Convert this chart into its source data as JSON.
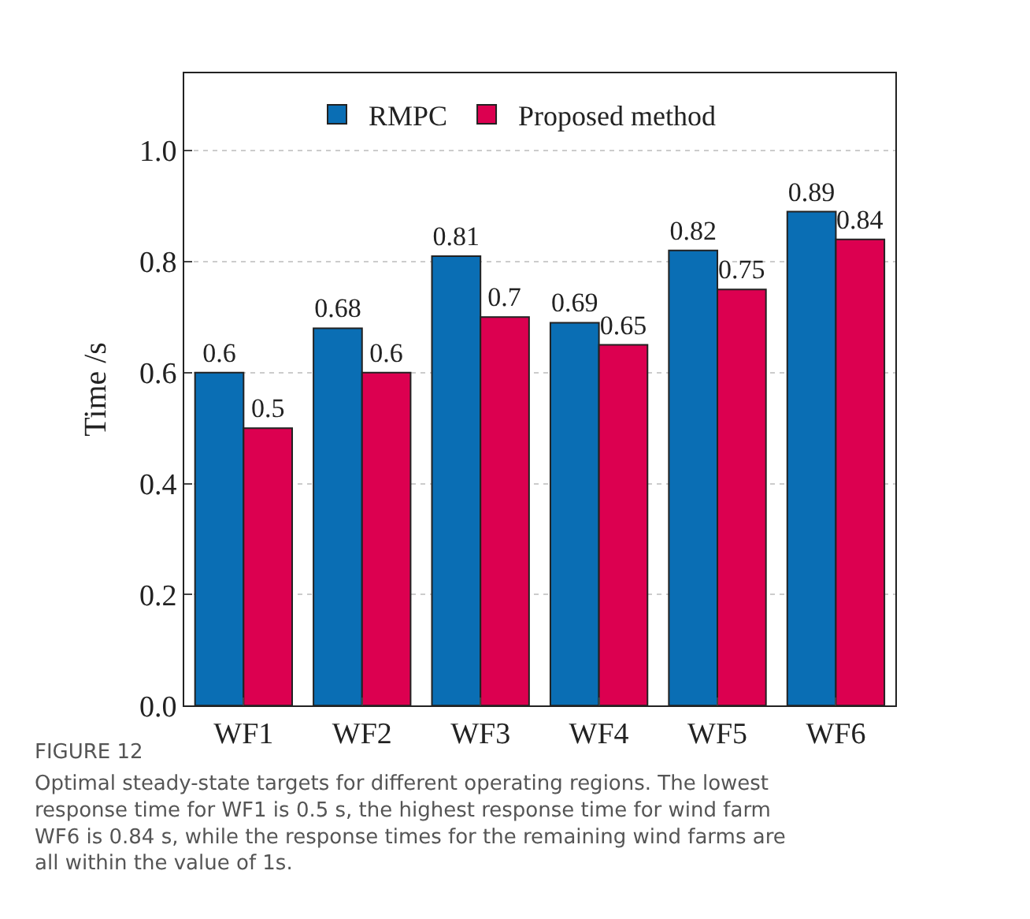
{
  "chart_data": {
    "type": "bar",
    "categories": [
      "WF1",
      "WF2",
      "WF3",
      "WF4",
      "WF5",
      "WF6"
    ],
    "series": [
      {
        "name": "RMPC",
        "color": "#0a6eb4",
        "values": [
          0.6,
          0.68,
          0.81,
          0.69,
          0.82,
          0.89
        ]
      },
      {
        "name": "Proposed method",
        "color": "#dc0050",
        "values": [
          0.5,
          0.6,
          0.7,
          0.65,
          0.75,
          0.84
        ]
      }
    ],
    "ylabel": "Time /s",
    "ylim": [
      0,
      1.14
    ],
    "yticks": [
      {
        "value": 0,
        "label": "0.0"
      },
      0.2,
      0.4,
      0.6,
      0.8,
      {
        "value": 1,
        "label": "1.0"
      }
    ],
    "grid": "y",
    "legend": "top",
    "data_labels": true,
    "annotations": [
      "FIGURE 12",
      "Optimal steady-state targets for different operating regions. The lowest response time for WF1 is 0.5 s, the highest response time for wind farm WF6 is 0.84 s, while the response times for the remaining wind farms are all within the value of 1s."
    ]
  }
}
